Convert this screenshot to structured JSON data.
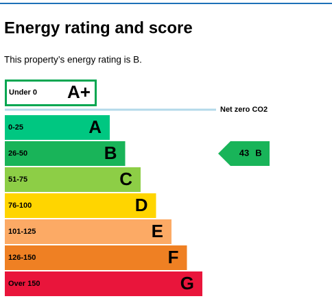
{
  "header": {
    "title": "Energy rating and score",
    "intro": "This property’s energy rating is B."
  },
  "top_band": {
    "range": "Under 0",
    "letter": "A+",
    "color": "#00a650"
  },
  "net_zero": {
    "label": "Net zero CO2",
    "color": "#b3d9ea"
  },
  "bands": [
    {
      "range": "0-25",
      "letter": "A",
      "color": "#00c781"
    },
    {
      "range": "26-50",
      "letter": "B",
      "color": "#19b459"
    },
    {
      "range": "51-75",
      "letter": "C",
      "color": "#8dce46"
    },
    {
      "range": "76-100",
      "letter": "D",
      "color": "#ffd500"
    },
    {
      "range": "101-125",
      "letter": "E",
      "color": "#fcaa65"
    },
    {
      "range": "126-150",
      "letter": "F",
      "color": "#ef8023"
    },
    {
      "range": "Over 150",
      "letter": "G",
      "color": "#e9153b"
    }
  ],
  "current": {
    "score": 43,
    "band": "B"
  }
}
